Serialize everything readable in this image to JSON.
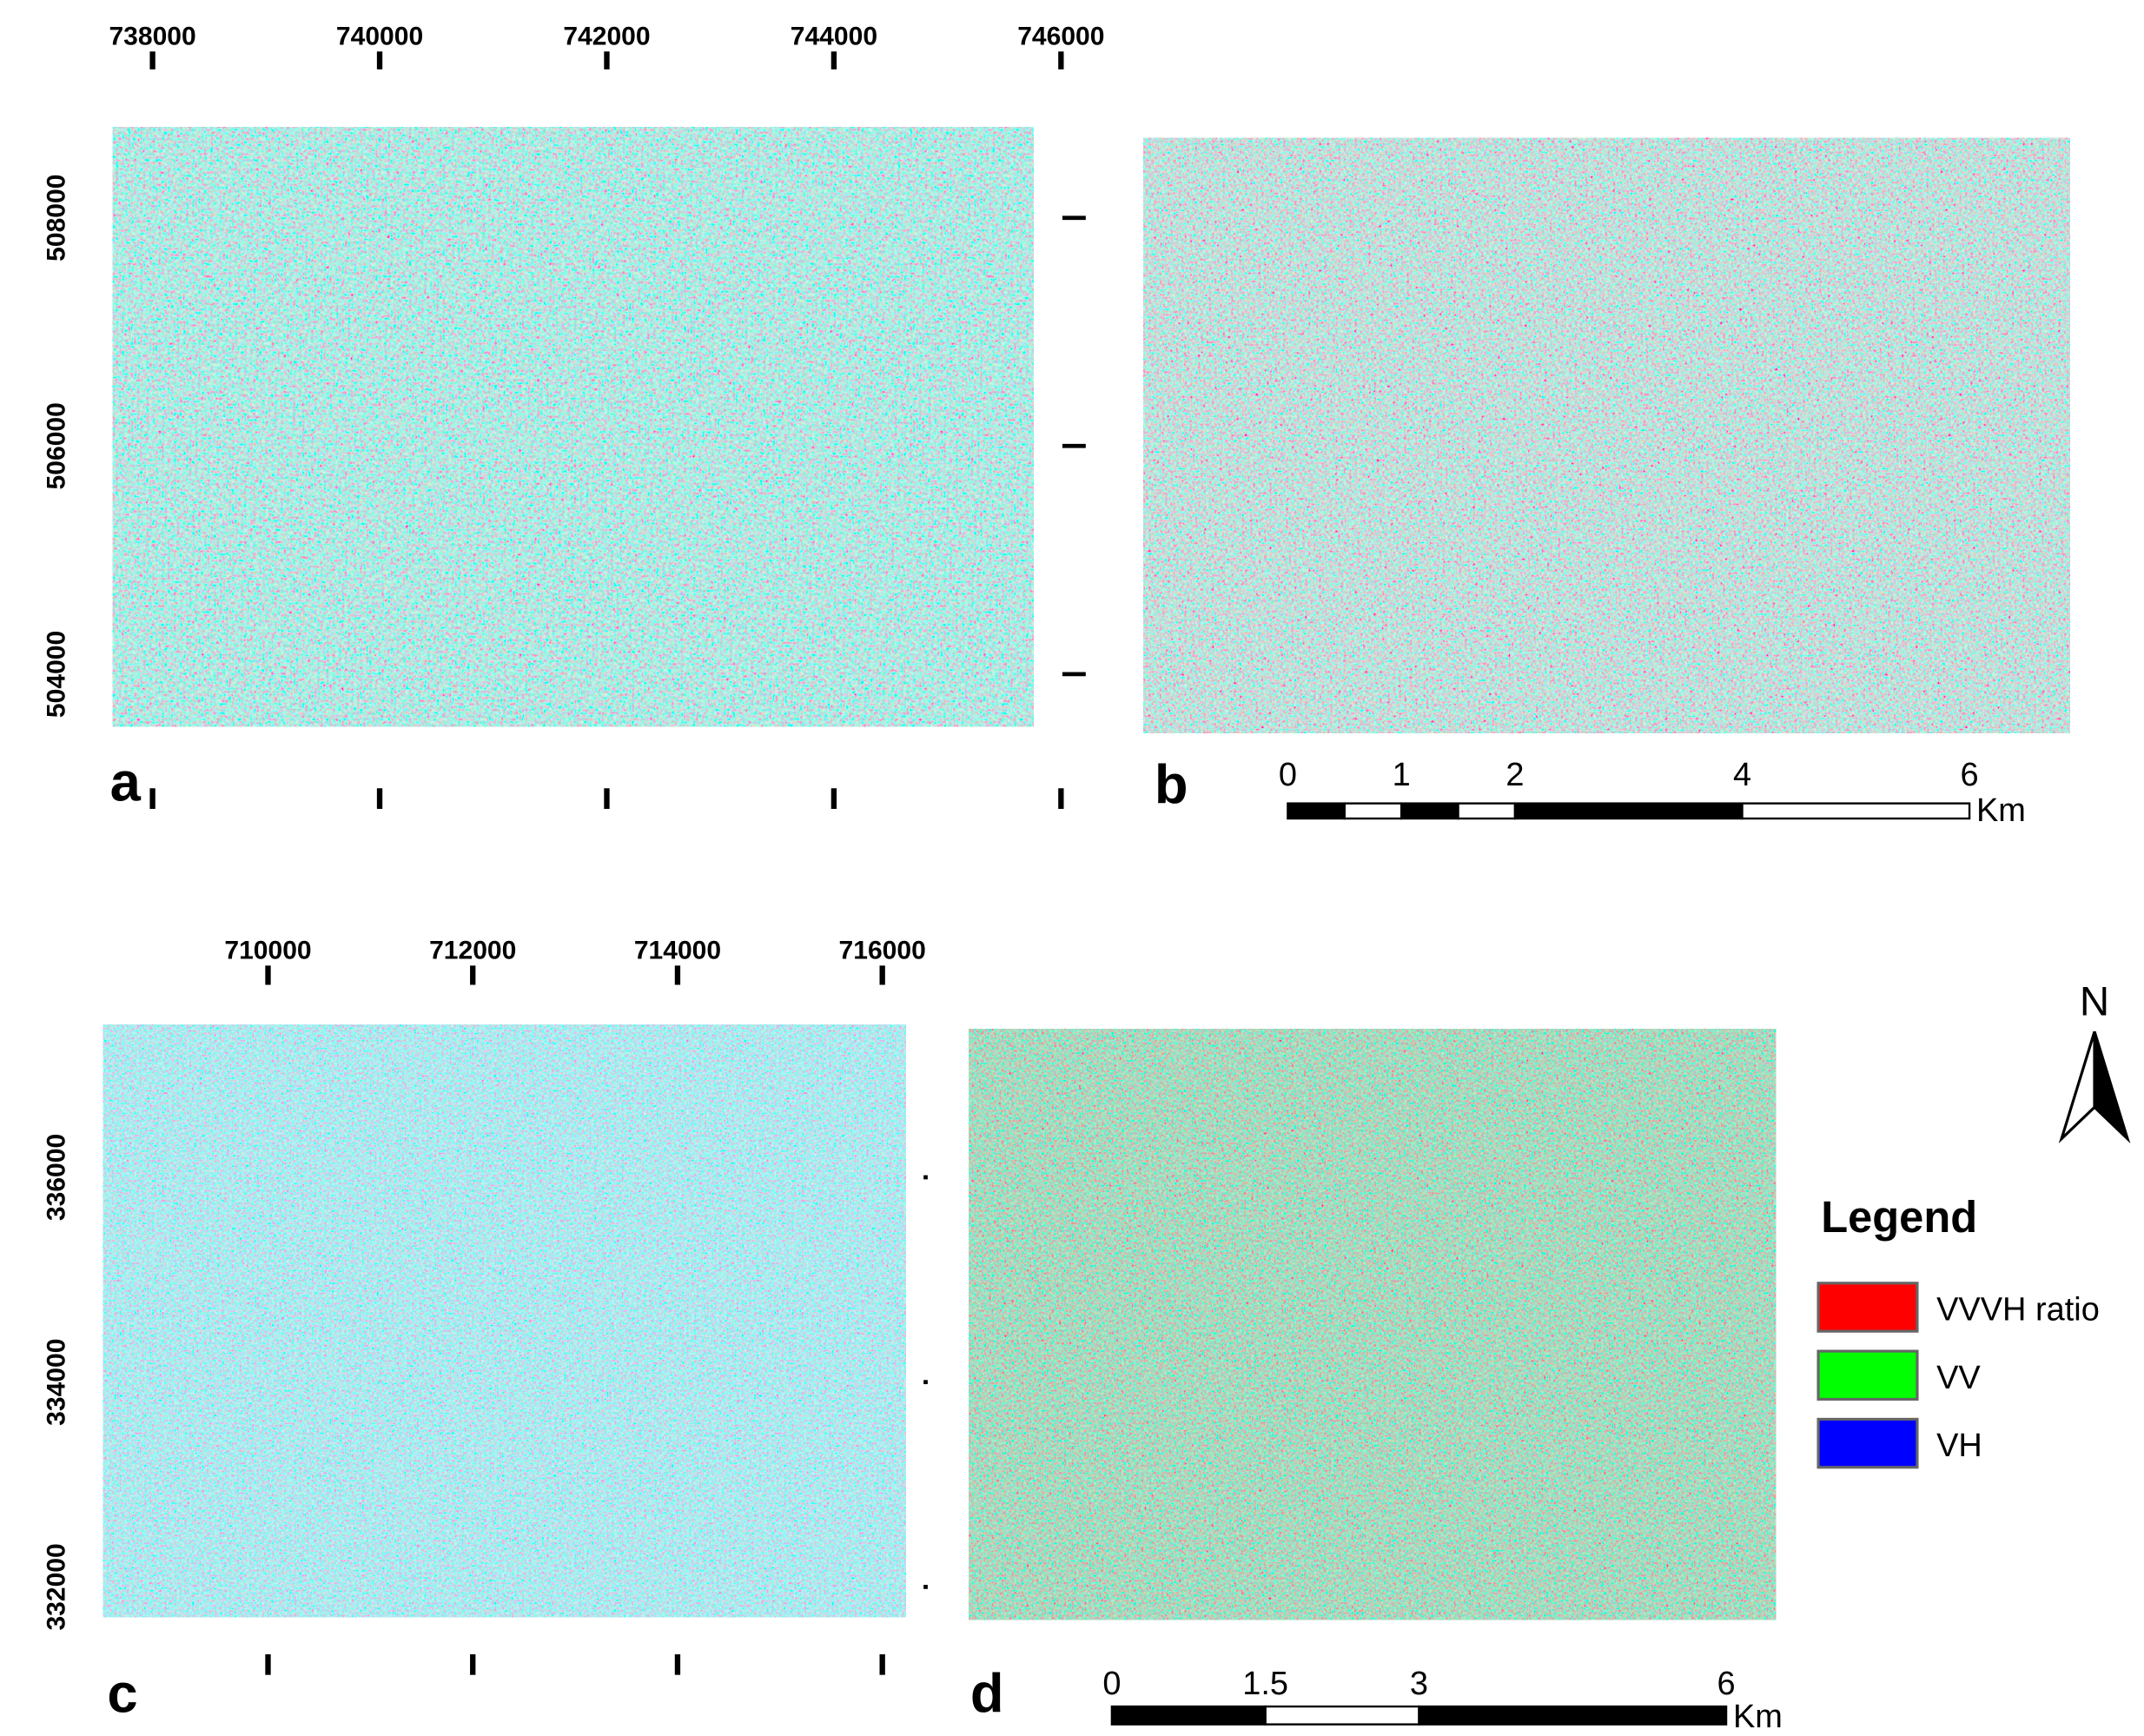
{
  "panels": [
    {
      "label": "a",
      "x_ticks": [
        738000,
        740000,
        742000,
        744000,
        746000
      ],
      "y_ticks": [
        508000,
        506000,
        504000
      ]
    },
    {
      "label": "b"
    },
    {
      "label": "c",
      "x_ticks": [
        710000,
        712000,
        714000,
        716000
      ],
      "y_ticks": [
        336000,
        334000,
        332000
      ]
    },
    {
      "label": "d"
    }
  ],
  "scale_bars": [
    {
      "ticks": [
        0,
        1,
        2,
        4,
        6
      ],
      "unit": "Km"
    },
    {
      "ticks": [
        0,
        1.5,
        3,
        6
      ],
      "unit": "Km"
    }
  ],
  "north_arrow": {
    "label": "N"
  },
  "legend": {
    "title": "Legend",
    "items": [
      {
        "label": "VVVH ratio",
        "color": "#ff0000"
      },
      {
        "label": "VV",
        "color": "#00ff00"
      },
      {
        "label": "VH",
        "color": "#0000ff"
      }
    ]
  }
}
